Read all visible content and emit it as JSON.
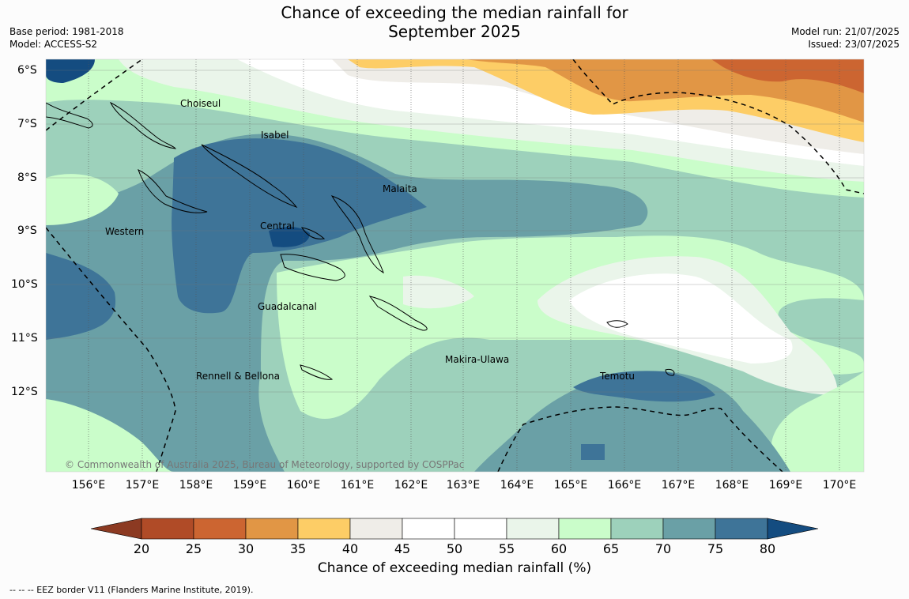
{
  "title": {
    "line1": "Chance of exceeding the median rainfall for",
    "line2": "September 2025"
  },
  "meta_left": {
    "base_period": "Base period: 1981-2018",
    "model": "Model: ACCESS-S2"
  },
  "meta_right": {
    "model_run": "Model run: 21/07/2025",
    "issued": "Issued: 23/07/2025"
  },
  "map": {
    "lon_labels": [
      "156°E",
      "157°E",
      "158°E",
      "159°E",
      "160°E",
      "161°E",
      "162°E",
      "163°E",
      "164°E",
      "165°E",
      "166°E",
      "167°E",
      "168°E",
      "169°E",
      "170°E"
    ],
    "lat_labels": [
      "6°S",
      "7°S",
      "8°S",
      "9°S",
      "10°S",
      "11°S",
      "12°S"
    ],
    "regions": [
      "Choiseul",
      "Isabel",
      "Malaita",
      "Western",
      "Central",
      "Guadalcanal",
      "Rennell & Bellona",
      "Makira-Ulawa",
      "Temotu"
    ],
    "copyright": "© Commonwealth of Australia 2025, Bureau of Meteorology, supported by COSPPac"
  },
  "colorbar": {
    "ticks": [
      "20",
      "25",
      "30",
      "35",
      "40",
      "45",
      "50",
      "55",
      "60",
      "65",
      "70",
      "75",
      "80"
    ],
    "title": "Chance of exceeding median rainfall (%)",
    "colors": {
      "lt20": "#8c3a22",
      "20-25": "#b04b27",
      "25-30": "#cc6531",
      "30-35": "#e19645",
      "35-40": "#fdcd66",
      "40-45": "#efede8",
      "45-50": "#ffffff",
      "50-55": "#ffffff",
      "55-60": "#eaf5ea",
      "60-65": "#cafdca",
      "65-70": "#9dd1bb",
      "70-75": "#6aa0a6",
      "75-80": "#3e7498",
      "gt80": "#144c80"
    }
  },
  "footnote": "--  --  -- EEZ border V11 (Flanders Marine Institute, 2019)."
}
